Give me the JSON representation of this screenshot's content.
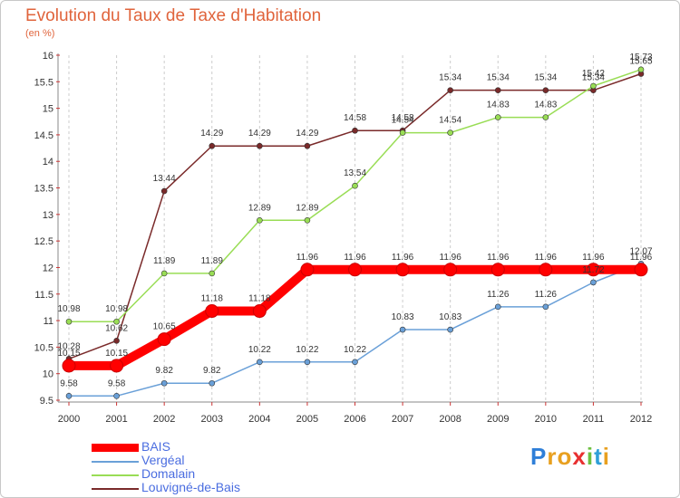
{
  "title": "Evolution du Taux de Taxe d'Habitation",
  "subtitle": "(en %)",
  "logo_text": "Proxiti",
  "chart_data": {
    "type": "line",
    "title": "Evolution du Taux de Taxe d'Habitation",
    "ylabel": "(en %)",
    "xlabel": "",
    "x": [
      "2000",
      "2001",
      "2002",
      "2003",
      "2004",
      "2005",
      "2006",
      "2007",
      "2008",
      "2009",
      "2010",
      "2011",
      "2012"
    ],
    "ylim": [
      9.5,
      16
    ],
    "yticks": [
      "9.5",
      "10",
      "10.5",
      "11",
      "11.5",
      "12",
      "12.5",
      "13",
      "13.5",
      "14",
      "14.5",
      "15",
      "15.5",
      "16"
    ],
    "grid": "vertical dashed",
    "legend_position": "bottom-left",
    "series": [
      {
        "name": "BAIS",
        "color": "#ff0000",
        "values": [
          10.15,
          10.15,
          10.65,
          11.18,
          11.18,
          11.96,
          11.96,
          11.96,
          11.96,
          11.96,
          11.96,
          11.96,
          11.96
        ],
        "labels": [
          "10.15",
          "10.15",
          "10.65",
          "11.18",
          "11.18",
          "11.96",
          "11.96",
          "11.96",
          "11.96",
          "11.96",
          "11.96",
          "11.96",
          "11.96"
        ]
      },
      {
        "name": "Vergéal",
        "color": "#6aa0d8",
        "values": [
          9.58,
          9.58,
          9.82,
          9.82,
          10.22,
          10.22,
          10.22,
          10.83,
          10.83,
          11.26,
          11.26,
          11.72,
          12.07
        ],
        "labels": [
          "9.58",
          "9.58",
          "9.82",
          "9.82",
          "10.22",
          "10.22",
          "10.22",
          "10.83",
          "10.83",
          "11.26",
          "11.26",
          "11.72",
          "12.07"
        ]
      },
      {
        "name": "Domalain",
        "color": "#99dd55",
        "values": [
          10.98,
          10.98,
          11.89,
          11.89,
          12.89,
          12.89,
          13.54,
          14.54,
          14.54,
          14.83,
          14.83,
          15.42,
          15.73
        ],
        "labels": [
          "10.98",
          "10.98",
          "11.89",
          "11.89",
          "12.89",
          "12.89",
          "13.54",
          "14.54",
          "14.54",
          "14.83",
          "14.83",
          "15.42",
          "15.73"
        ]
      },
      {
        "name": "Louvigné-de-Bais",
        "color": "#7a2a2a",
        "values": [
          10.28,
          10.62,
          13.44,
          14.29,
          14.29,
          14.29,
          14.58,
          14.58,
          15.34,
          15.34,
          15.34,
          15.34,
          15.65
        ],
        "labels": [
          "10.28",
          "10.62",
          "13.44",
          "14.29",
          "14.29",
          "14.29",
          "14.58",
          "14.58",
          "15.34",
          "15.34",
          "15.34",
          "15.34",
          "15.65"
        ]
      }
    ]
  }
}
